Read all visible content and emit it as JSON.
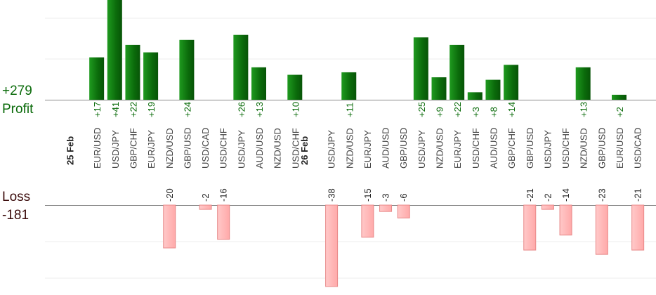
{
  "summary": {
    "profit_total": "+279",
    "profit_label": "Profit",
    "loss_label": "Loss",
    "loss_total": "-181"
  },
  "colors": {
    "profit_bar": "#0b6b0b",
    "profit_bar_light": "#1f9a1f",
    "profit_text": "#0b6b0b",
    "loss_bar": "#ffb3b3",
    "loss_bar_border": "#e88888",
    "loss_text": "#222222",
    "grid": "#eeeeee",
    "axis": "#888888"
  },
  "chart_data": {
    "type": "bar",
    "groups": [
      {
        "label": "25 Feb",
        "slots": [
          {
            "pair": "EUR/USD",
            "profit": 17
          },
          {
            "pair": "USD/JPY",
            "profit": 41
          },
          {
            "pair": "GBP/CHF",
            "profit": 22
          },
          {
            "pair": "EUR/JPY",
            "profit": 19
          },
          {
            "pair": "NZD/USD",
            "loss": -20
          },
          {
            "pair": "GBP/USD",
            "profit": 24
          },
          {
            "pair": "USD/CAD",
            "loss": -2
          },
          {
            "pair": "USD/CHF",
            "loss": -16
          },
          {
            "pair": "USD/JPY",
            "profit": 26
          },
          {
            "pair": "AUD/USD",
            "profit": 13
          },
          {
            "pair": "NZD/USD"
          },
          {
            "pair": "USD/CHF",
            "profit": 10
          }
        ]
      },
      {
        "label": "26 Feb",
        "slots": [
          {
            "pair": "USD/JPY",
            "loss": -38
          },
          {
            "pair": "NZD/USD",
            "profit": 11
          },
          {
            "pair": "EUR/JPY",
            "loss": -15
          },
          {
            "pair": "AUD/USD",
            "loss": -3
          },
          {
            "pair": "GBP/USD",
            "loss": -6
          },
          {
            "pair": "USD/JPY",
            "profit": 25
          },
          {
            "pair": "NZD/USD",
            "profit": 9
          },
          {
            "pair": "EUR/JPY",
            "profit": 22
          },
          {
            "pair": "USD/CHF",
            "profit": 3
          },
          {
            "pair": "AUD/USD",
            "profit": 8
          },
          {
            "pair": "GBP/CHF",
            "profit": 14
          },
          {
            "pair": "GBP/USD",
            "loss": -21
          },
          {
            "pair": "USD/JPY",
            "loss": -2
          },
          {
            "pair": "USD/CHF",
            "loss": -14
          },
          {
            "pair": "NZD/USD",
            "profit": 13
          },
          {
            "pair": "GBP/USD",
            "loss": -23
          },
          {
            "pair": "EUR/USD",
            "profit": 2
          },
          {
            "pair": "USD/CAD",
            "loss": -21
          }
        ]
      }
    ],
    "grid": true
  }
}
